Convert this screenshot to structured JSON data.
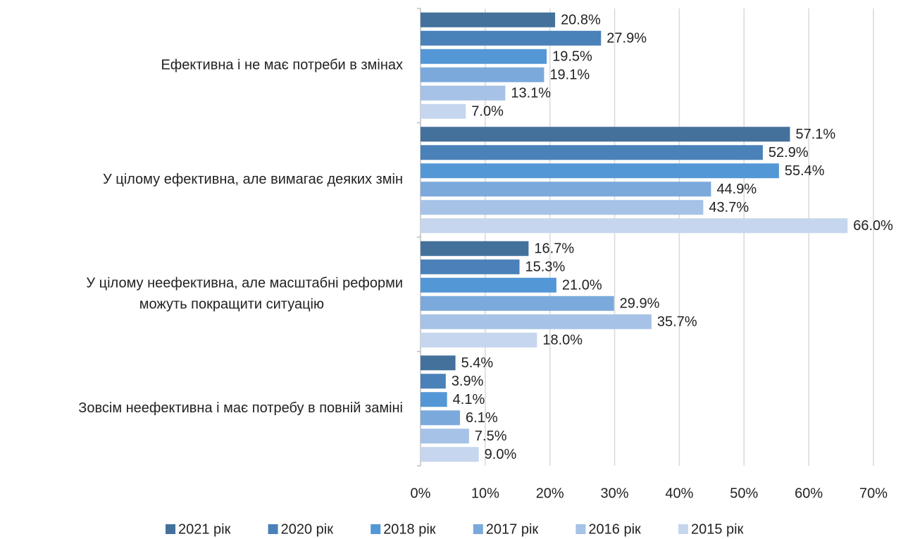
{
  "chart_data": {
    "type": "bar",
    "orientation": "horizontal",
    "categories": [
      "Ефективна і не має потреби в змінах",
      "У цілому ефективна, але вимагає деяких змін",
      "У цілому неефективна, але масштабні реформи\nможуть покращити ситуацію",
      "Зовсім неефективна і має потребу в повній заміні"
    ],
    "series": [
      {
        "name": "2021 рік",
        "color": "#44719c",
        "values": [
          20.8,
          57.1,
          16.7,
          5.4
        ],
        "value_labels": [
          "20.8%",
          "57.1%",
          "16.7%",
          "5.4%"
        ]
      },
      {
        "name": "2020 рік",
        "color": "#4a81b9",
        "values": [
          27.9,
          52.9,
          15.3,
          3.9
        ],
        "value_labels": [
          "27.9%",
          "52.9%",
          "15.3%",
          "3.9%"
        ]
      },
      {
        "name": "2018 рік",
        "color": "#5497d6",
        "values": [
          19.5,
          55.4,
          21.0,
          4.1
        ],
        "value_labels": [
          "19.5%",
          "55.4%",
          "21.0%",
          "4.1%"
        ]
      },
      {
        "name": "2017 рік",
        "color": "#7ba9dc",
        "values": [
          19.1,
          44.9,
          29.9,
          6.1
        ],
        "value_labels": [
          "19.1%",
          "44.9%",
          "29.9%",
          "6.1%"
        ]
      },
      {
        "name": "2016 рік",
        "color": "#a6c2e6",
        "values": [
          13.1,
          43.7,
          35.7,
          7.5
        ],
        "value_labels": [
          "13.1%",
          "43.7%",
          "35.7%",
          "7.5%"
        ]
      },
      {
        "name": "2015 рік",
        "color": "#c5d6ee",
        "values": [
          7.0,
          66.0,
          18.0,
          9.0
        ],
        "value_labels": [
          "7.0%",
          "66.0%",
          "18.0%",
          "9.0%"
        ]
      }
    ],
    "xlim": [
      0,
      70
    ],
    "xticks": [
      {
        "value": 0,
        "label": "0%"
      },
      {
        "value": 10,
        "label": "10%"
      },
      {
        "value": 20,
        "label": "20%"
      },
      {
        "value": 30,
        "label": "30%"
      },
      {
        "value": 40,
        "label": "40%"
      },
      {
        "value": 50,
        "label": "50%"
      },
      {
        "value": 60,
        "label": "60%"
      },
      {
        "value": 70,
        "label": "70%"
      }
    ],
    "grid": true,
    "legend": "bottom"
  }
}
